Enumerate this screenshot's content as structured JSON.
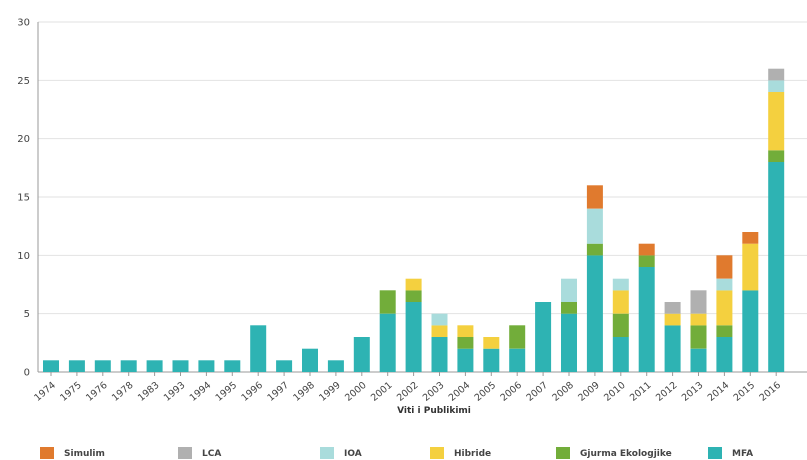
{
  "chart_data": {
    "type": "bar",
    "stacked": true,
    "title": "",
    "xlabel": "Viti i Publikimi",
    "ylabel": "",
    "ylim": [
      0,
      30
    ],
    "yticks": [
      0,
      5,
      10,
      15,
      20,
      25,
      30
    ],
    "grid": "horizontal",
    "legend_position": "bottom",
    "categories": [
      "1974",
      "1975",
      "1976",
      "1978",
      "1983",
      "1993",
      "1994",
      "1995",
      "1996",
      "1997",
      "1998",
      "1999",
      "2000",
      "2001",
      "2002",
      "2003",
      "2004",
      "2005",
      "2006",
      "2007",
      "2008",
      "2009",
      "2010",
      "2011",
      "2012",
      "2013",
      "2014",
      "2015",
      "2016"
    ],
    "series": [
      {
        "name": "MFA",
        "color": "#2eb3b3",
        "values": [
          1,
          1,
          1,
          1,
          1,
          1,
          1,
          1,
          4,
          1,
          2,
          1,
          3,
          5,
          6,
          3,
          2,
          2,
          2,
          6,
          5,
          10,
          3,
          9,
          4,
          2,
          3,
          7,
          18
        ]
      },
      {
        "name": "Gjurma Ekologjike",
        "color": "#72ad3a",
        "values": [
          0,
          0,
          0,
          0,
          0,
          0,
          0,
          0,
          0,
          0,
          0,
          0,
          0,
          2,
          1,
          0,
          1,
          0,
          2,
          0,
          1,
          1,
          2,
          1,
          0,
          2,
          1,
          0,
          1
        ]
      },
      {
        "name": "Hibride",
        "color": "#f4d03f",
        "values": [
          0,
          0,
          0,
          0,
          0,
          0,
          0,
          0,
          0,
          0,
          0,
          0,
          0,
          0,
          1,
          1,
          1,
          1,
          0,
          0,
          0,
          0,
          2,
          0,
          1,
          1,
          3,
          4,
          5
        ]
      },
      {
        "name": "IOA",
        "color": "#a9dcdc",
        "values": [
          0,
          0,
          0,
          0,
          0,
          0,
          0,
          0,
          0,
          0,
          0,
          0,
          0,
          0,
          0,
          1,
          0,
          0,
          0,
          0,
          2,
          3,
          1,
          0,
          0,
          0,
          1,
          0,
          1
        ]
      },
      {
        "name": "LCA",
        "color": "#b0b0b0",
        "values": [
          0,
          0,
          0,
          0,
          0,
          0,
          0,
          0,
          0,
          0,
          0,
          0,
          0,
          0,
          0,
          0,
          0,
          0,
          0,
          0,
          0,
          0,
          0,
          0,
          1,
          2,
          0,
          0,
          1
        ]
      },
      {
        "name": "Simulim",
        "color": "#e07a2e",
        "values": [
          0,
          0,
          0,
          0,
          0,
          0,
          0,
          0,
          0,
          0,
          0,
          0,
          0,
          0,
          0,
          0,
          0,
          0,
          0,
          0,
          0,
          2,
          0,
          1,
          0,
          0,
          2,
          1,
          0
        ]
      }
    ],
    "legend_order": [
      "Simulim",
      "LCA",
      "IOA",
      "Hibride",
      "Gjurma Ekologjike",
      "MFA"
    ]
  }
}
